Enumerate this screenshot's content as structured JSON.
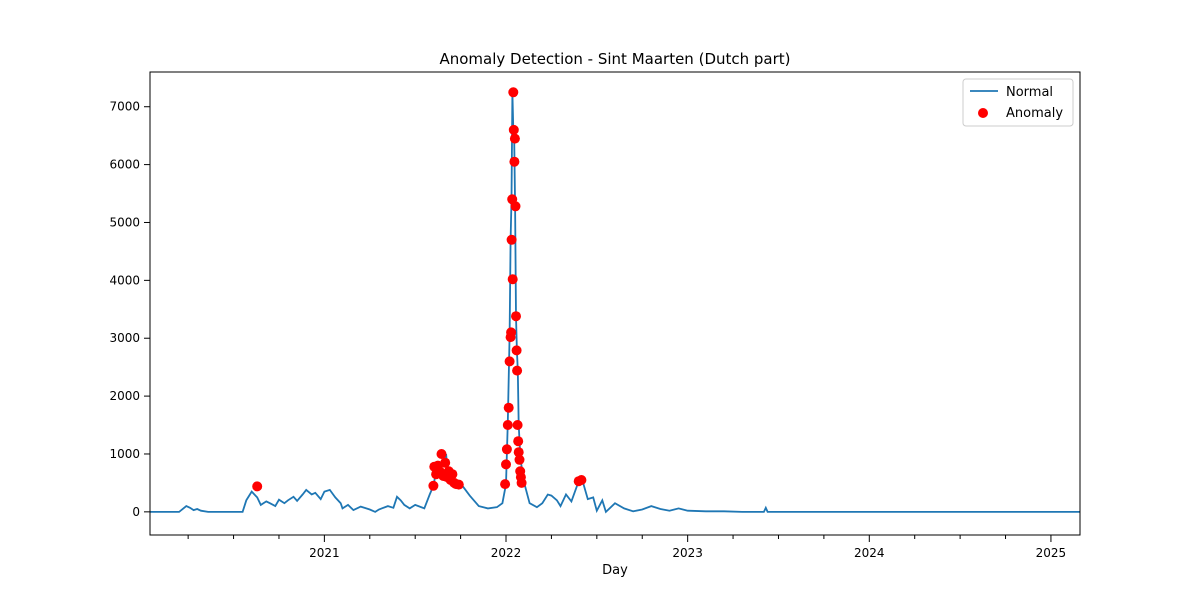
{
  "chart_data": {
    "type": "line",
    "title": "Anomaly Detection - Sint Maarten (Dutch part)",
    "xlabel": "Day",
    "ylabel": "",
    "xlim": [
      2020.04,
      2025.16
    ],
    "ylim": [
      -400,
      7600
    ],
    "x_ticks": [
      {
        "value": 2021.0,
        "label": "2021"
      },
      {
        "value": 2022.0,
        "label": "2022"
      },
      {
        "value": 2023.0,
        "label": "2023"
      },
      {
        "value": 2024.0,
        "label": "2024"
      },
      {
        "value": 2025.0,
        "label": "2025"
      }
    ],
    "x_minor_ticks": [
      2020.25,
      2020.5,
      2020.75,
      2021.25,
      2021.5,
      2021.75,
      2022.25,
      2022.5,
      2022.75,
      2023.25,
      2023.5,
      2023.75,
      2024.25,
      2024.5,
      2024.75
    ],
    "y_ticks": [
      0,
      1000,
      2000,
      3000,
      4000,
      5000,
      6000,
      7000
    ],
    "y_tick_labels": [
      "0",
      "1000",
      "2000",
      "3000",
      "4000",
      "5000",
      "6000",
      "7000"
    ],
    "colors": {
      "normal": "#1f77b4",
      "anomaly": "#ff0000"
    },
    "legend": {
      "position": "top-right",
      "normal_label": "Normal",
      "anomaly_label": "Anomaly"
    },
    "series": [
      {
        "name": "Normal",
        "x": [
          2020.04,
          2020.2,
          2020.24,
          2020.26,
          2020.28,
          2020.3,
          2020.32,
          2020.36,
          2020.45,
          2020.55,
          2020.57,
          2020.6,
          2020.63,
          2020.65,
          2020.68,
          2020.7,
          2020.73,
          2020.75,
          2020.78,
          2020.8,
          2020.83,
          2020.85,
          2020.88,
          2020.9,
          2020.93,
          2020.95,
          2020.98,
          2021.0,
          2021.03,
          2021.06,
          2021.09,
          2021.1,
          2021.13,
          2021.16,
          2021.2,
          2021.25,
          2021.28,
          2021.3,
          2021.35,
          2021.38,
          2021.4,
          2021.42,
          2021.44,
          2021.47,
          2021.5,
          2021.55,
          2021.58,
          2021.6,
          2021.62,
          2021.63,
          2021.65,
          2021.66,
          2021.67,
          2021.68,
          2021.69,
          2021.7,
          2021.72,
          2021.74,
          2021.76,
          2021.8,
          2021.85,
          2021.9,
          2021.95,
          2021.98,
          2022.0,
          2022.01,
          2022.02,
          2022.025,
          2022.03,
          2022.035,
          2022.04,
          2022.045,
          2022.05,
          2022.055,
          2022.06,
          2022.065,
          2022.07,
          2022.08,
          2022.09,
          2022.1,
          2022.13,
          2022.17,
          2022.2,
          2022.23,
          2022.25,
          2022.28,
          2022.3,
          2022.33,
          2022.36,
          2022.4,
          2022.42,
          2022.45,
          2022.48,
          2022.5,
          2022.53,
          2022.55,
          2022.6,
          2022.65,
          2022.7,
          2022.75,
          2022.8,
          2022.85,
          2022.9,
          2022.95,
          2023.0,
          2023.1,
          2023.2,
          2023.3,
          2023.4,
          2023.42,
          2023.43,
          2023.44,
          2023.6,
          2024.0,
          2024.5,
          2025.0,
          2025.16
        ],
        "y": [
          0,
          0,
          100,
          70,
          30,
          50,
          20,
          0,
          0,
          0,
          200,
          350,
          250,
          120,
          180,
          150,
          100,
          210,
          150,
          200,
          260,
          190,
          300,
          380,
          300,
          330,
          220,
          350,
          380,
          250,
          150,
          60,
          120,
          30,
          90,
          40,
          0,
          40,
          100,
          70,
          260,
          200,
          120,
          60,
          120,
          60,
          300,
          450,
          780,
          650,
          850,
          830,
          1000,
          650,
          700,
          580,
          500,
          420,
          450,
          280,
          100,
          60,
          80,
          150,
          480,
          1550,
          3050,
          4700,
          5400,
          7250,
          6600,
          6450,
          5280,
          3380,
          2790,
          2440,
          1500,
          900,
          700,
          500,
          150,
          80,
          150,
          300,
          280,
          200,
          100,
          300,
          180,
          530,
          550,
          220,
          250,
          20,
          200,
          0,
          150,
          60,
          10,
          40,
          100,
          50,
          20,
          60,
          20,
          10,
          10,
          0,
          0,
          0,
          70,
          0,
          0,
          0,
          0,
          0,
          0
        ]
      },
      {
        "name": "Anomaly",
        "x": [
          2020.63,
          2021.6,
          2021.605,
          2021.615,
          2021.625,
          2021.635,
          2021.645,
          2021.655,
          2021.665,
          2021.675,
          2021.685,
          2021.695,
          2021.705,
          2021.715,
          2021.725,
          2021.74,
          2021.995,
          2022.0,
          2022.005,
          2022.01,
          2022.015,
          2022.02,
          2022.025,
          2022.028,
          2022.031,
          2022.034,
          2022.037,
          2022.04,
          2022.043,
          2022.046,
          2022.049,
          2022.052,
          2022.055,
          2022.058,
          2022.061,
          2022.064,
          2022.067,
          2022.07,
          2022.074,
          2022.078,
          2022.082,
          2022.086,
          2022.4,
          2022.415
        ],
        "y": [
          440,
          450,
          780,
          650,
          800,
          700,
          1000,
          620,
          850,
          600,
          700,
          550,
          650,
          500,
          480,
          470,
          480,
          820,
          1080,
          1500,
          1800,
          2600,
          3020,
          3100,
          4700,
          5400,
          4020,
          7250,
          6600,
          6050,
          6450,
          5280,
          3380,
          2790,
          2440,
          1500,
          1220,
          1030,
          900,
          700,
          600,
          500,
          530,
          550
        ]
      }
    ]
  }
}
